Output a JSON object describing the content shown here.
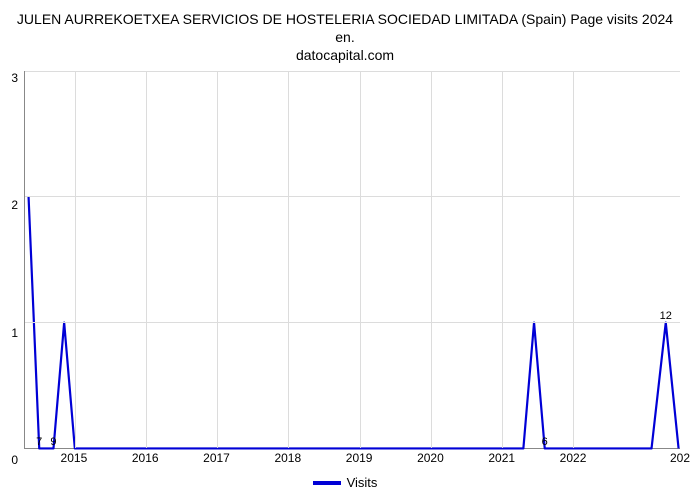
{
  "title_line1": "JULEN AURREKOETXEA SERVICIOS DE HOSTELERIA SOCIEDAD LIMITADA (Spain) Page visits 2024 en.",
  "title_line2": "datocapital.com",
  "chart": {
    "type": "line",
    "background_color": "#ffffff",
    "grid_color": "#dcdcdc",
    "axis_color": "#888888",
    "series_color": "#0000d6",
    "line_width": 2.2,
    "xlim": [
      2014.3,
      2023.5
    ],
    "ylim": [
      0,
      3
    ],
    "yticks": [
      0,
      1,
      2,
      3
    ],
    "xticks": [
      2015,
      2016,
      2017,
      2018,
      2019,
      2020,
      2021,
      2022
    ],
    "xtick_trailing_label": "202",
    "data_points": [
      {
        "x": 2014.35,
        "y": 2.0,
        "label": ""
      },
      {
        "x": 2014.5,
        "y": 0.0,
        "label": "7"
      },
      {
        "x": 2014.7,
        "y": 0.0,
        "label": "9"
      },
      {
        "x": 2014.85,
        "y": 1.0,
        "label": ""
      },
      {
        "x": 2015.0,
        "y": 0.0,
        "label": ""
      },
      {
        "x": 2021.3,
        "y": 0.0,
        "label": ""
      },
      {
        "x": 2021.45,
        "y": 1.0,
        "label": ""
      },
      {
        "x": 2021.6,
        "y": 0.0,
        "label": "6"
      },
      {
        "x": 2023.1,
        "y": 0.0,
        "label": ""
      },
      {
        "x": 2023.3,
        "y": 1.0,
        "label": "12"
      },
      {
        "x": 2023.48,
        "y": 0.0,
        "label": ""
      }
    ],
    "point_label_fontsize": 11,
    "title_fontsize": 14,
    "tick_fontsize": 12
  },
  "legend": {
    "label": "Visits",
    "swatch_color": "#0000d6",
    "fontsize": 13
  }
}
